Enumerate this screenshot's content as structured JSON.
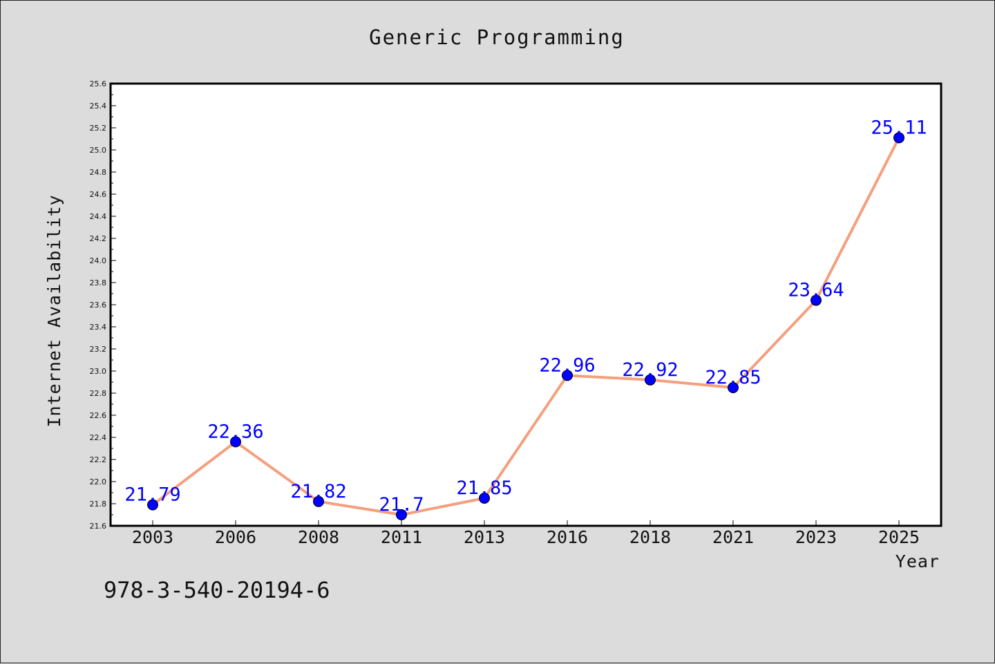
{
  "chart_data": {
    "type": "line",
    "title": "Generic Programming",
    "xlabel": "Year",
    "ylabel": "Internet Availability",
    "categories": [
      "2003",
      "2006",
      "2008",
      "2011",
      "2013",
      "2016",
      "2018",
      "2021",
      "2023",
      "2025"
    ],
    "series": [
      {
        "values": [
          21.79,
          22.36,
          21.82,
          21.7,
          21.85,
          22.96,
          22.92,
          22.85,
          23.64,
          25.11
        ],
        "line_color": "#f4a07e",
        "marker_color": "#0000ff"
      }
    ],
    "data_labels": [
      "21.79",
      "22.36",
      "21.82",
      "21.7",
      "21.85",
      "22.96",
      "22.92",
      "22.85",
      "23.64",
      "25.11"
    ],
    "ylim": [
      21.6,
      25.6
    ],
    "y_ticks": [
      "21.6",
      "21.8",
      "22.0",
      "22.2",
      "22.4",
      "22.6",
      "22.8",
      "23.0",
      "23.2",
      "23.4",
      "23.6",
      "23.8",
      "24.0",
      "24.2",
      "24.4",
      "24.6",
      "24.8",
      "25.0",
      "25.2",
      "25.4",
      "25.6"
    ],
    "grid": false,
    "legend": "none",
    "background_color": "#dcdcdc",
    "plot_background_color": "#ffffff",
    "label_color": "#0000ff"
  },
  "footnote": "978-3-540-20194-6"
}
